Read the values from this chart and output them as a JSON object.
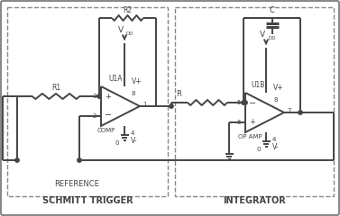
{
  "bg_color": "#ffffff",
  "outer_border_color": "#888888",
  "dashed_color": "#888888",
  "line_color": "#444444",
  "line_width": 1.4,
  "schmitt_label": "SCHMITT TRIGGER",
  "integrator_label": "INTEGRATOR",
  "reference_label": "REFERENCE",
  "opamp1_label": "U1A",
  "opamp2_label": "U1B",
  "comp_label": "COMP",
  "opamp_label": "OP AMP",
  "vdd_label": "V",
  "vdd_sub": "DD",
  "r1_label": "R1",
  "r2_label": "R2",
  "r_label": "R",
  "c_label": "C",
  "pin1": "1",
  "pin2": "2",
  "pin3": "3",
  "pin4": "4",
  "pin5": "5",
  "pin6": "6",
  "pin7": "7",
  "pin8": "8",
  "vplus": "V+",
  "vminus": "V-",
  "gnd0": "0"
}
